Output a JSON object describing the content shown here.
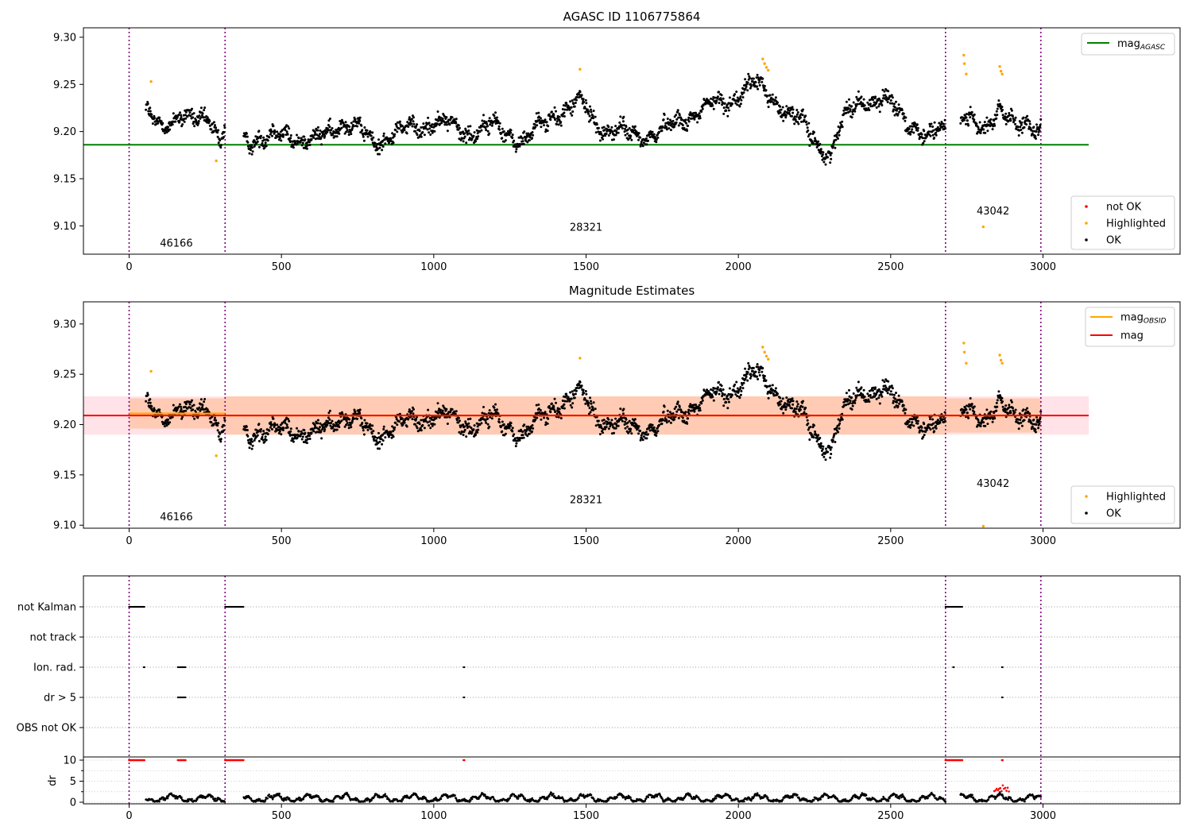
{
  "chart_data": [
    {
      "type": "scatter",
      "title": "AGASC ID 1106775864",
      "xlim": [
        -150,
        3450
      ],
      "ylim": [
        9.07,
        9.31
      ],
      "yticks": [
        9.1,
        9.15,
        9.2,
        9.25,
        9.3
      ],
      "xticks": [
        0,
        500,
        1000,
        1500,
        2000,
        2500,
        3000
      ],
      "grid": false,
      "obs_boundaries": [
        0,
        315,
        2680,
        2993
      ],
      "obs_labels": [
        {
          "text": "46166",
          "x": 155,
          "y": 9.078
        },
        {
          "text": "28321",
          "x": 1500,
          "y": 9.095
        },
        {
          "text": "43042",
          "x": 2836,
          "y": 9.112
        }
      ],
      "reference_line": {
        "name": "mag_AGASC",
        "y": 9.186,
        "x_range": [
          -150,
          3150
        ],
        "color": "#008000"
      },
      "highlighted": [
        {
          "x": 72,
          "y": 9.253
        },
        {
          "x": 286,
          "y": 9.169
        },
        {
          "x": 1480,
          "y": 9.266
        },
        {
          "x": 2080,
          "y": 9.277
        },
        {
          "x": 2086,
          "y": 9.272
        },
        {
          "x": 2092,
          "y": 9.268
        },
        {
          "x": 2098,
          "y": 9.265
        },
        {
          "x": 2740,
          "y": 9.281
        },
        {
          "x": 2742,
          "y": 9.272
        },
        {
          "x": 2748,
          "y": 9.261
        },
        {
          "x": 2804,
          "y": 9.099
        },
        {
          "x": 2858,
          "y": 9.269
        },
        {
          "x": 2862,
          "y": 9.264
        },
        {
          "x": 2866,
          "y": 9.261
        }
      ],
      "legend_upper": {
        "position": "top-right",
        "entries": [
          {
            "label": "mag",
            "subscript": "AGASC",
            "color": "#008000"
          }
        ]
      },
      "legend_lower": {
        "position": "bottom-right",
        "entries": [
          {
            "label": "not OK",
            "color": "#ff0000"
          },
          {
            "label": "Highlighted",
            "color": "#ffa500"
          },
          {
            "label": "OK",
            "color": "#000000"
          }
        ]
      }
    },
    {
      "type": "scatter",
      "title": "Magnitude Estimates",
      "xlim": [
        -150,
        3450
      ],
      "ylim": [
        9.097,
        9.322
      ],
      "yticks": [
        9.1,
        9.15,
        9.2,
        9.25,
        9.3
      ],
      "xticks": [
        0,
        500,
        1000,
        1500,
        2000,
        2500,
        3000
      ],
      "grid": false,
      "obs_boundaries": [
        0,
        315,
        2680,
        2993
      ],
      "obs_labels": [
        {
          "text": "46166",
          "x": 155,
          "y": 9.105
        },
        {
          "text": "28321",
          "x": 1500,
          "y": 9.122
        },
        {
          "text": "43042",
          "x": 2836,
          "y": 9.138
        }
      ],
      "mag_line": {
        "name": "mag",
        "y": 9.209,
        "band": [
          9.19,
          9.228
        ],
        "x_range": [
          -150,
          3150
        ],
        "color": "#ff0000"
      },
      "obsid_segments": [
        {
          "x_range": [
            0,
            315
          ],
          "y": 9.211,
          "band": [
            9.196,
            9.226
          ]
        },
        {
          "x_range": [
            315,
            2680
          ],
          "y": 9.209,
          "band": [
            9.19,
            9.228
          ]
        },
        {
          "x_range": [
            2680,
            2993
          ],
          "y": 9.209,
          "band": [
            9.192,
            9.226
          ]
        }
      ],
      "legend_upper": {
        "position": "top-right",
        "entries": [
          {
            "label": "mag",
            "subscript": "OBSID",
            "color": "#ffa500"
          },
          {
            "label": "mag",
            "subscript": "",
            "color": "#ff0000"
          }
        ]
      },
      "legend_lower": {
        "position": "bottom-right",
        "entries": [
          {
            "label": "Highlighted",
            "color": "#ffa500"
          },
          {
            "label": "OK",
            "color": "#000000"
          }
        ]
      }
    },
    {
      "type": "scatter",
      "title": "",
      "xlim": [
        -150,
        3450
      ],
      "flag_rows": [
        "not Kalman",
        "not track",
        "Ion. rad.",
        "dr > 5",
        "OBS not OK"
      ],
      "flag_segments": {
        "not Kalman": [
          [
            0,
            52
          ],
          [
            315,
            375
          ],
          [
            2680,
            2735
          ]
        ],
        "not track": [],
        "Ion. rad.": [
          [
            48,
            52
          ],
          [
            160,
            185
          ],
          [
            1098,
            1102
          ],
          [
            2705,
            2709
          ],
          [
            2865,
            2869
          ]
        ],
        "dr > 5": [
          [
            160,
            185
          ],
          [
            1098,
            1102
          ],
          [
            2865,
            2869
          ]
        ],
        "OBS not OK": []
      },
      "dr_ylim": [
        -0.5,
        11
      ],
      "dr_yticks": [
        0,
        5,
        10
      ],
      "dr_ylabel": "dr",
      "dr_flagged_red": [
        [
          0,
          52
        ],
        [
          160,
          185
        ],
        [
          315,
          375
        ],
        [
          1098,
          1102
        ],
        [
          2680,
          2735
        ],
        [
          2865,
          2869
        ]
      ]
    }
  ],
  "axis_text": {
    "xtick_labels": [
      "0",
      "500",
      "1000",
      "1500",
      "2000",
      "2500",
      "3000"
    ],
    "ytick_labels": [
      "9.10",
      "9.15",
      "9.20",
      "9.25",
      "9.30"
    ],
    "dr_ytick_labels": [
      "0",
      "5",
      "10"
    ],
    "dr_label": "dr"
  },
  "colors": {
    "ok": "#000000",
    "highlighted": "#ffa500",
    "not_ok": "#ff0000",
    "agasc": "#008000",
    "boundary": "#800080",
    "band_mag": "#ffc0cb",
    "band_obsid": "#ffb380"
  }
}
